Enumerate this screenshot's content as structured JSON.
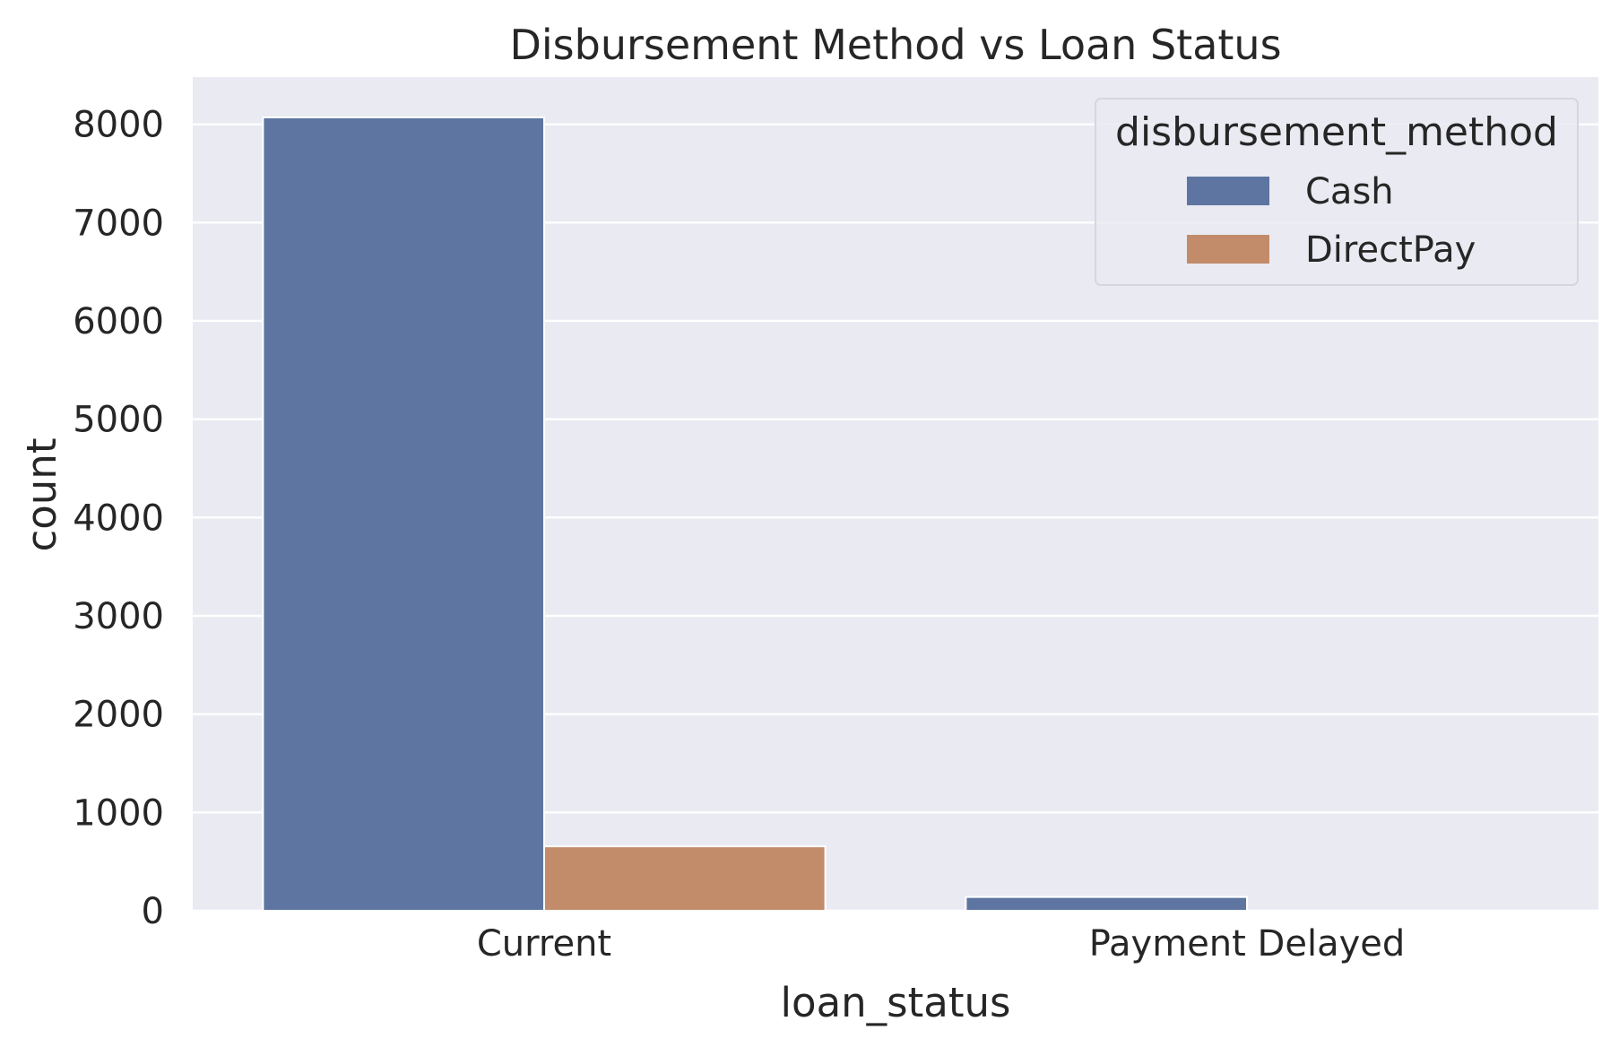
{
  "chart_data": {
    "type": "bar",
    "title": "Disbursement Method vs Loan Status",
    "xlabel": "loan_status",
    "ylabel": "count",
    "categories": [
      "Current",
      "Payment Delayed"
    ],
    "series": [
      {
        "name": "Cash",
        "color": "#5d75a0",
        "values": [
          8070,
          140
        ]
      },
      {
        "name": "DirectPay",
        "color": "#c28b69",
        "values": [
          655,
          0
        ]
      }
    ],
    "ylim": [
      0,
      8480
    ],
    "yticks": [
      0,
      1000,
      2000,
      3000,
      4000,
      5000,
      6000,
      7000,
      8000
    ],
    "grid": true,
    "legend": {
      "title": "disbursement_method",
      "placement": "top-right"
    }
  }
}
